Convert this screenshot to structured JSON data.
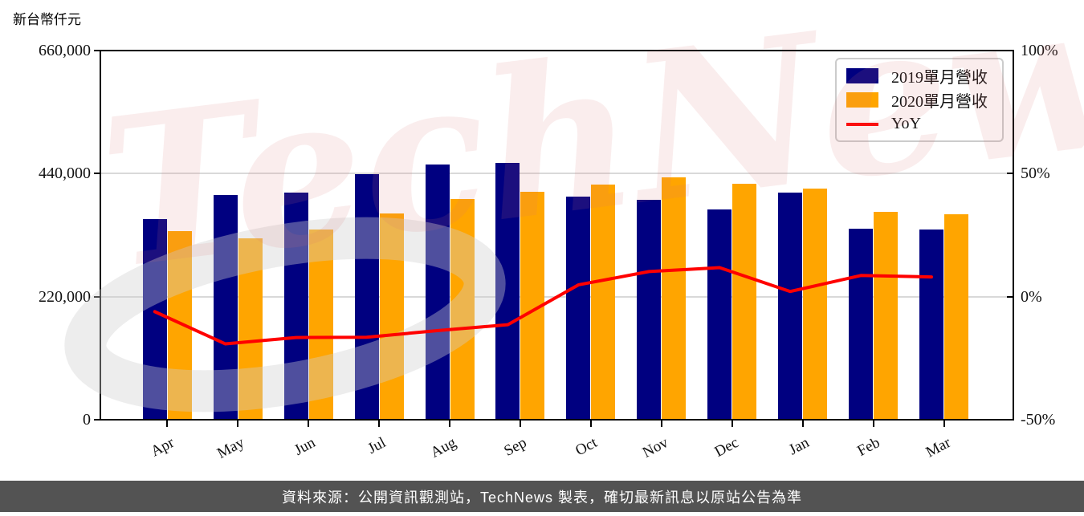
{
  "watermark": {
    "text": "TechNews"
  },
  "footer": {
    "text": "資料來源：公開資訊觀測站，TechNews 製表，確切最新訊息以原站公告為準",
    "bg_color": "#535353"
  },
  "chart_data": {
    "type": "bar",
    "title": "",
    "categories": [
      "Apr",
      "May",
      "Jun",
      "Jul",
      "Aug",
      "Sep",
      "Oct",
      "Nov",
      "Dec",
      "Jan",
      "Feb",
      "Mar"
    ],
    "series": [
      {
        "name": "2019單月營收",
        "type": "bar",
        "color": "#000080",
        "values": [
          358300,
          401700,
          406600,
          439600,
          455800,
          459700,
          399400,
          393700,
          375500,
          405600,
          342000,
          340600
        ]
      },
      {
        "name": "2020單月營收",
        "type": "bar",
        "color": "#FFA500",
        "values": [
          337200,
          324300,
          340600,
          368300,
          394600,
          408000,
          420000,
          433600,
          421400,
          413800,
          371600,
          367300
        ]
      },
      {
        "name": "YoY",
        "type": "line",
        "color": "#FF0000",
        "unit": "%",
        "values": [
          -6.1,
          -19.2,
          -16.6,
          -16.5,
          -13.8,
          -11.4,
          4.8,
          10.2,
          11.8,
          2.1,
          8.6,
          8.0
        ]
      }
    ],
    "left_axis": {
      "title": "新台幣仟元",
      "min": 0,
      "max": 660000,
      "tick_values": [
        660000,
        440000,
        220000,
        0
      ],
      "tick_labels": [
        "660,000",
        "440,000",
        "220,000",
        "0"
      ]
    },
    "right_axis": {
      "min": -50,
      "max": 100,
      "tick_values": [
        100,
        50,
        0,
        -50
      ],
      "tick_labels": [
        "100%",
        "50%",
        "0%",
        "-50%"
      ]
    },
    "grid": "horizontal",
    "gridline_color": "#d9d9d9",
    "legend_position": "upper right"
  }
}
